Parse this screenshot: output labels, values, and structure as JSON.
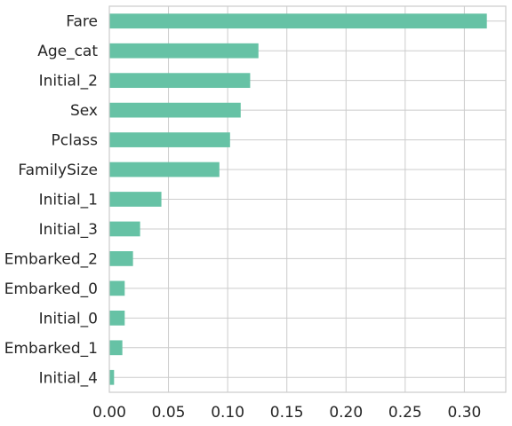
{
  "chart_data": {
    "type": "bar",
    "orientation": "horizontal",
    "title": "",
    "xlabel": "",
    "ylabel": "",
    "categories": [
      "Fare",
      "Age_cat",
      "Initial_2",
      "Sex",
      "Pclass",
      "FamilySize",
      "Initial_1",
      "Initial_3",
      "Embarked_2",
      "Embarked_0",
      "Initial_0",
      "Embarked_1",
      "Initial_4"
    ],
    "values": [
      0.319,
      0.126,
      0.119,
      0.111,
      0.102,
      0.093,
      0.044,
      0.026,
      0.02,
      0.013,
      0.013,
      0.011,
      0.004
    ],
    "xlim": [
      0,
      0.335
    ],
    "xticks": [
      0.0,
      0.05,
      0.1,
      0.15,
      0.2,
      0.25,
      0.3
    ],
    "xtick_labels": [
      "0.00",
      "0.05",
      "0.10",
      "0.15",
      "0.20",
      "0.25",
      "0.30"
    ],
    "bar_color": "#66c2a5",
    "grid": true,
    "legend": "none"
  }
}
